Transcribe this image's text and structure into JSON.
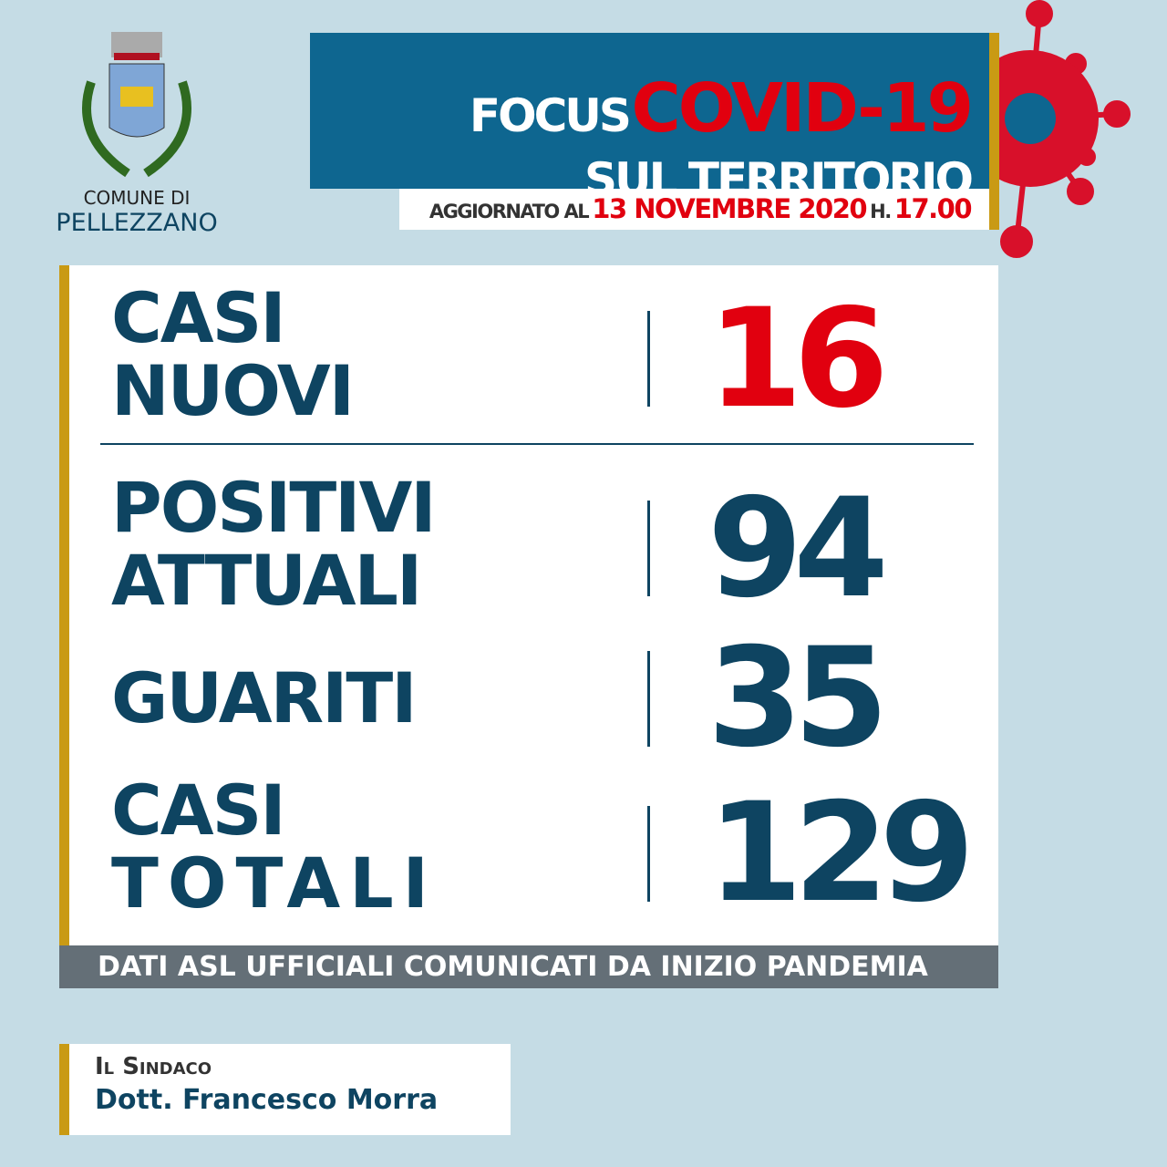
{
  "logo": {
    "line1": "COMUNE DI",
    "line2": "PELLEZZANO"
  },
  "header": {
    "focus": "FOCUS",
    "covid": "COVID-19",
    "subtitle": "SUL TERRITORIO"
  },
  "updated": {
    "prefix": "AGGIORNATO AL",
    "date": "13 NOVEMBRE 2020",
    "hour_prefix": "H.",
    "hour": "17.00"
  },
  "stats": [
    {
      "label1": "CASI",
      "label2": "NUOVI",
      "value": "16",
      "color": "#e1000f"
    },
    {
      "label1": "POSITIVI",
      "label2": "ATTUALI",
      "value": "94",
      "color": "#0e4461"
    },
    {
      "label1": "GUARITI",
      "label2": "",
      "value": "35",
      "color": "#0e4461"
    },
    {
      "label1": "CASI",
      "label2": "TOTALI",
      "value": "129",
      "color": "#0e4461"
    }
  ],
  "banner": "DATI ASL UFFICIALI COMUNICATI DA INIZIO PANDEMIA",
  "signature": {
    "title": "Il Sindaco",
    "name": "Dott. Francesco Morra"
  },
  "colors": {
    "background": "#c5dce5",
    "header_blue": "#0e6690",
    "accent_red": "#e1000f",
    "gold": "#c99a14",
    "navy": "#0e4461"
  }
}
